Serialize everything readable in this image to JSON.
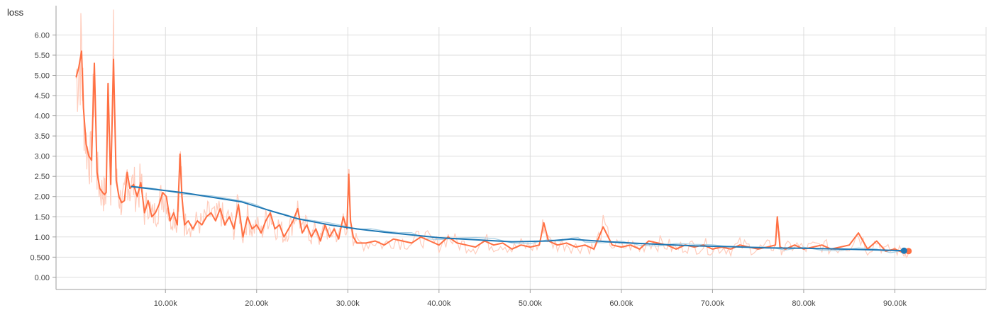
{
  "chart_data": {
    "type": "line",
    "title": "loss",
    "xlabel": "",
    "ylabel": "",
    "xlim": [
      -2000,
      100000
    ],
    "ylim": [
      -0.3,
      6.2
    ],
    "grid": true,
    "legend": "none",
    "x_ticks": [
      10000,
      20000,
      30000,
      40000,
      50000,
      60000,
      70000,
      80000,
      90000
    ],
    "x_tick_labels": [
      "10.00k",
      "20.00k",
      "30.00k",
      "40.00k",
      "50.00k",
      "60.00k",
      "70.00k",
      "80.00k",
      "90.00k"
    ],
    "y_ticks": [
      0,
      0.5,
      1,
      1.5,
      2,
      2.5,
      3,
      3.5,
      4,
      4.5,
      5,
      5.5,
      6
    ],
    "y_tick_labels": [
      "0.00",
      "0.500",
      "1.00",
      "1.50",
      "2.00",
      "2.50",
      "3.00",
      "3.50",
      "4.00",
      "4.50",
      "5.00",
      "5.50",
      "6.00"
    ],
    "colors": {
      "orange": "#ff7043",
      "orange_raw": "#ffccbc",
      "blue": "#1f78b4",
      "blue_raw": "#a6cee3",
      "grid": "#dddddd",
      "axis": "#9e9e9e"
    },
    "series": [
      {
        "color": "#ff7043",
        "raw_color": "#ffccbc",
        "x": [
          200,
          500,
          800,
          1000,
          1300,
          1600,
          1900,
          2200,
          2500,
          2800,
          3100,
          3300,
          3500,
          3700,
          4000,
          4300,
          4600,
          4900,
          5200,
          5500,
          5800,
          6100,
          6500,
          6900,
          7300,
          7700,
          8100,
          8500,
          8900,
          9300,
          9700,
          10100,
          10500,
          10900,
          11300,
          11600,
          11800,
          12100,
          12500,
          13000,
          13500,
          14000,
          14500,
          15000,
          15500,
          16000,
          16500,
          17000,
          17500,
          18000,
          18500,
          19000,
          19500,
          20000,
          20500,
          21000,
          21500,
          22000,
          22500,
          23000,
          23500,
          24000,
          24500,
          25000,
          25500,
          26000,
          26500,
          27000,
          27500,
          28000,
          28500,
          29000,
          29500,
          29900,
          30100,
          30300,
          30600,
          31000,
          32000,
          33000,
          34000,
          35000,
          36000,
          37000,
          38000,
          39000,
          40000,
          41000,
          42000,
          43000,
          44000,
          45000,
          46000,
          47000,
          48000,
          49000,
          50000,
          51000,
          51500,
          52000,
          53000,
          54000,
          55000,
          56000,
          57000,
          58000,
          59000,
          60000,
          61000,
          62000,
          63000,
          64000,
          65000,
          66000,
          67000,
          68000,
          69000,
          70000,
          71000,
          72000,
          73000,
          74000,
          75000,
          76000,
          76900,
          77100,
          77400,
          78000,
          79000,
          80000,
          81000,
          82000,
          83000,
          84000,
          85000,
          86000,
          87000,
          88000,
          89000,
          90000,
          91000,
          91500
        ],
        "y": [
          4.95,
          5.2,
          5.6,
          4.2,
          3.3,
          3.0,
          2.9,
          5.3,
          2.6,
          2.2,
          2.1,
          2.05,
          2.1,
          4.8,
          2.3,
          5.4,
          2.4,
          2.0,
          1.85,
          1.9,
          2.6,
          2.2,
          2.3,
          2.0,
          2.35,
          1.6,
          1.9,
          1.5,
          1.6,
          1.8,
          2.1,
          2.0,
          1.4,
          1.6,
          1.3,
          3.05,
          2.0,
          1.3,
          1.4,
          1.2,
          1.4,
          1.3,
          1.5,
          1.6,
          1.4,
          1.7,
          1.3,
          1.5,
          1.2,
          1.8,
          1.0,
          1.5,
          1.2,
          1.3,
          1.1,
          1.4,
          1.6,
          1.2,
          1.3,
          1.0,
          1.2,
          1.4,
          1.7,
          1.1,
          1.3,
          1.0,
          1.2,
          0.9,
          1.3,
          1.0,
          1.2,
          0.95,
          1.5,
          1.2,
          2.55,
          1.4,
          1.0,
          0.85,
          0.85,
          0.9,
          0.8,
          0.95,
          0.9,
          0.85,
          1.0,
          0.9,
          0.8,
          1.0,
          0.85,
          0.8,
          0.75,
          0.9,
          0.8,
          0.85,
          0.7,
          0.8,
          0.75,
          0.8,
          1.35,
          0.9,
          0.8,
          0.85,
          0.75,
          0.8,
          0.7,
          1.25,
          0.8,
          0.75,
          0.8,
          0.7,
          0.9,
          0.85,
          0.8,
          0.7,
          0.8,
          0.75,
          0.8,
          0.7,
          0.75,
          0.7,
          0.8,
          0.75,
          0.7,
          0.75,
          0.8,
          1.5,
          0.75,
          0.7,
          0.8,
          0.7,
          0.75,
          0.8,
          0.7,
          0.75,
          0.8,
          1.1,
          0.7,
          0.9,
          0.65,
          0.7,
          0.6,
          0.65
        ]
      },
      {
        "color": "#1f78b4",
        "raw_color": "#a6cee3",
        "x": [
          6200,
          11800,
          18300,
          21500,
          24500,
          28000,
          31000,
          34000,
          37000,
          40000,
          44000,
          48000,
          52000,
          54500,
          56000,
          60000,
          64000,
          68000,
          72000,
          76000,
          80000,
          84000,
          88000,
          91000
        ],
        "y": [
          2.25,
          2.1,
          1.87,
          1.65,
          1.45,
          1.3,
          1.2,
          1.12,
          1.05,
          0.98,
          0.93,
          0.88,
          0.9,
          0.95,
          0.92,
          0.86,
          0.82,
          0.78,
          0.76,
          0.73,
          0.72,
          0.7,
          0.68,
          0.66
        ]
      }
    ]
  }
}
